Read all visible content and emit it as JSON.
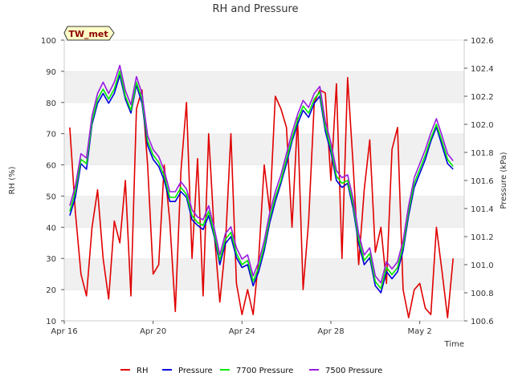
{
  "chart_data": {
    "type": "line",
    "title": "RH and Pressure",
    "tag": "TW_met",
    "xlabel": "Time",
    "ylabel_left": "RH (%)",
    "ylabel_right": "Pressure (kPa)",
    "ylim_left": [
      10,
      100
    ],
    "ylim_right": [
      100.6,
      102.6
    ],
    "xlim_days": [
      "Apr 16",
      "May 4"
    ],
    "x_ticks": [
      "Apr 16",
      "Apr 20",
      "Apr 24",
      "Apr 28",
      "May 2"
    ],
    "y_ticks_left": [
      10,
      20,
      30,
      40,
      50,
      60,
      70,
      80,
      90,
      100
    ],
    "y_ticks_right": [
      100.6,
      100.8,
      101.0,
      101.2,
      101.4,
      101.6,
      101.8,
      102.0,
      102.2,
      102.4,
      102.6
    ],
    "grid": "horizontal bands",
    "legend": "bottom",
    "colors": {
      "RH": "#e00000",
      "Pressure": "#0000dd",
      "7700 Pressure": "#00ee00",
      "7500 Pressure": "#9a1be0"
    },
    "series": [
      {
        "name": "RH",
        "axis": "left",
        "x": [
          "Apr 16 06:00",
          "Apr 16 12:00",
          "Apr 16 18:00",
          "Apr 17 00:00",
          "Apr 17 06:00",
          "Apr 17 12:00",
          "Apr 17 18:00",
          "Apr 18 00:00",
          "Apr 18 06:00",
          "Apr 18 12:00",
          "Apr 18 18:00",
          "Apr 19 00:00",
          "Apr 19 06:00",
          "Apr 19 12:00",
          "Apr 19 18:00",
          "Apr 20 00:00",
          "Apr 20 06:00",
          "Apr 20 12:00",
          "Apr 20 18:00",
          "Apr 21 00:00",
          "Apr 21 06:00",
          "Apr 21 12:00",
          "Apr 21 18:00",
          "Apr 22 00:00",
          "Apr 22 06:00",
          "Apr 22 12:00",
          "Apr 22 18:00",
          "Apr 23 00:00",
          "Apr 23 06:00",
          "Apr 23 12:00",
          "Apr 23 18:00",
          "Apr 24 00:00",
          "Apr 24 06:00",
          "Apr 24 12:00",
          "Apr 24 18:00",
          "Apr 25 00:00",
          "Apr 25 06:00",
          "Apr 25 12:00",
          "Apr 25 18:00",
          "Apr 26 00:00",
          "Apr 26 06:00",
          "Apr 26 12:00",
          "Apr 26 18:00",
          "Apr 27 00:00",
          "Apr 27 06:00",
          "Apr 27 12:00",
          "Apr 27 18:00",
          "Apr 28 00:00",
          "Apr 28 06:00",
          "Apr 28 12:00",
          "Apr 28 18:00",
          "Apr 29 00:00",
          "Apr 29 06:00",
          "Apr 29 12:00",
          "Apr 29 18:00",
          "Apr 30 00:00",
          "Apr 30 06:00",
          "Apr 30 12:00",
          "Apr 30 18:00",
          "May 1 00:00",
          "May 1 06:00",
          "May 1 12:00",
          "May 1 18:00",
          "May 2 00:00",
          "May 2 06:00",
          "May 2 12:00",
          "May 2 18:00",
          "May 3 00:00",
          "May 3 06:00",
          "May 3 12:00"
        ],
        "values": [
          72,
          45,
          25,
          18,
          40,
          52,
          30,
          17,
          42,
          35,
          55,
          18,
          78,
          84,
          60,
          25,
          28,
          60,
          42,
          13,
          58,
          80,
          30,
          62,
          18,
          70,
          38,
          16,
          34,
          70,
          22,
          12,
          20,
          12,
          30,
          60,
          45,
          82,
          78,
          72,
          40,
          75,
          20,
          42,
          80,
          84,
          83,
          55,
          86,
          30,
          88,
          60,
          28,
          52,
          68,
          32,
          40,
          22,
          65,
          72,
          20,
          11,
          20,
          22,
          14,
          12,
          40,
          26,
          11,
          30
        ]
      },
      {
        "name": "Pressure",
        "axis": "right",
        "x": [
          "Apr 16 06:00",
          "Apr 16 12:00",
          "Apr 16 18:00",
          "Apr 17 00:00",
          "Apr 17 06:00",
          "Apr 17 12:00",
          "Apr 17 18:00",
          "Apr 18 00:00",
          "Apr 18 06:00",
          "Apr 18 12:00",
          "Apr 18 18:00",
          "Apr 19 00:00",
          "Apr 19 06:00",
          "Apr 19 12:00",
          "Apr 19 18:00",
          "Apr 20 00:00",
          "Apr 20 06:00",
          "Apr 20 12:00",
          "Apr 20 18:00",
          "Apr 21 00:00",
          "Apr 21 06:00",
          "Apr 21 12:00",
          "Apr 21 18:00",
          "Apr 22 00:00",
          "Apr 22 06:00",
          "Apr 22 12:00",
          "Apr 22 18:00",
          "Apr 23 00:00",
          "Apr 23 06:00",
          "Apr 23 12:00",
          "Apr 23 18:00",
          "Apr 24 00:00",
          "Apr 24 06:00",
          "Apr 24 12:00",
          "Apr 24 18:00",
          "Apr 25 00:00",
          "Apr 25 06:00",
          "Apr 25 12:00",
          "Apr 25 18:00",
          "Apr 26 00:00",
          "Apr 26 06:00",
          "Apr 26 12:00",
          "Apr 26 18:00",
          "Apr 27 00:00",
          "Apr 27 06:00",
          "Apr 27 12:00",
          "Apr 27 18:00",
          "Apr 28 00:00",
          "Apr 28 06:00",
          "Apr 28 12:00",
          "Apr 28 18:00",
          "Apr 29 00:00",
          "Apr 29 06:00",
          "Apr 29 12:00",
          "Apr 29 18:00",
          "Apr 30 00:00",
          "Apr 30 06:00",
          "Apr 30 12:00",
          "Apr 30 18:00",
          "May 1 00:00",
          "May 1 06:00",
          "May 1 12:00",
          "May 1 18:00",
          "May 2 00:00",
          "May 2 06:00",
          "May 2 12:00",
          "May 2 18:00",
          "May 3 00:00",
          "May 3 06:00",
          "May 3 12:00"
        ],
        "values": [
          101.35,
          101.48,
          101.72,
          101.68,
          102.0,
          102.15,
          102.22,
          102.15,
          102.22,
          102.35,
          102.18,
          102.08,
          102.28,
          102.15,
          101.85,
          101.75,
          101.7,
          101.6,
          101.45,
          101.45,
          101.52,
          101.48,
          101.32,
          101.28,
          101.25,
          101.35,
          101.2,
          101.0,
          101.15,
          101.2,
          101.05,
          100.98,
          101.0,
          100.85,
          100.95,
          101.1,
          101.3,
          101.45,
          101.58,
          101.72,
          101.88,
          102.0,
          102.1,
          102.05,
          102.15,
          102.2,
          101.95,
          101.8,
          101.6,
          101.55,
          101.58,
          101.4,
          101.15,
          101.0,
          101.05,
          100.85,
          100.8,
          100.95,
          100.9,
          100.95,
          101.1,
          101.35,
          101.55,
          101.65,
          101.75,
          101.88,
          101.98,
          101.85,
          101.72,
          101.68
        ]
      },
      {
        "name": "7700 Pressure",
        "axis": "right",
        "x": [
          "Apr 16 06:00",
          "Apr 16 12:00",
          "Apr 16 18:00",
          "Apr 17 00:00",
          "Apr 17 06:00",
          "Apr 17 12:00",
          "Apr 17 18:00",
          "Apr 18 00:00",
          "Apr 18 06:00",
          "Apr 18 12:00",
          "Apr 18 18:00",
          "Apr 19 00:00",
          "Apr 19 06:00",
          "Apr 19 12:00",
          "Apr 19 18:00",
          "Apr 20 00:00",
          "Apr 20 06:00",
          "Apr 20 12:00",
          "Apr 20 18:00",
          "Apr 21 00:00",
          "Apr 21 06:00",
          "Apr 21 12:00",
          "Apr 21 18:00",
          "Apr 22 00:00",
          "Apr 22 06:00",
          "Apr 22 12:00",
          "Apr 22 18:00",
          "Apr 23 00:00",
          "Apr 23 06:00",
          "Apr 23 12:00",
          "Apr 23 18:00",
          "Apr 24 00:00",
          "Apr 24 06:00",
          "Apr 24 12:00",
          "Apr 24 18:00",
          "Apr 25 00:00",
          "Apr 25 06:00",
          "Apr 25 12:00",
          "Apr 25 18:00",
          "Apr 26 00:00",
          "Apr 26 06:00",
          "Apr 26 12:00",
          "Apr 26 18:00",
          "Apr 27 00:00",
          "Apr 27 06:00",
          "Apr 27 12:00",
          "Apr 27 18:00",
          "Apr 28 00:00",
          "Apr 28 06:00",
          "Apr 28 12:00",
          "Apr 28 18:00",
          "Apr 29 00:00",
          "Apr 29 06:00",
          "Apr 29 12:00",
          "Apr 29 18:00",
          "Apr 30 00:00",
          "Apr 30 06:00",
          "Apr 30 12:00",
          "Apr 30 18:00",
          "May 1 00:00",
          "May 1 06:00",
          "May 1 12:00",
          "May 1 18:00",
          "May 2 00:00",
          "May 2 06:00",
          "May 2 12:00",
          "May 2 18:00",
          "May 3 00:00",
          "May 3 06:00",
          "May 3 12:00"
        ],
        "values": [
          101.38,
          101.52,
          101.75,
          101.72,
          102.02,
          102.18,
          102.25,
          102.18,
          102.25,
          102.38,
          102.2,
          102.1,
          102.3,
          102.18,
          101.88,
          101.78,
          101.73,
          101.63,
          101.48,
          101.48,
          101.55,
          101.5,
          101.35,
          101.3,
          101.28,
          101.38,
          101.22,
          101.03,
          101.18,
          101.23,
          101.08,
          101.0,
          101.03,
          100.88,
          100.98,
          101.13,
          101.33,
          101.48,
          101.6,
          101.75,
          101.9,
          102.03,
          102.13,
          102.08,
          102.18,
          102.23,
          101.98,
          101.83,
          101.63,
          101.58,
          101.6,
          101.43,
          101.18,
          101.03,
          101.08,
          100.88,
          100.83,
          100.98,
          100.93,
          100.98,
          101.13,
          101.38,
          101.58,
          101.68,
          101.78,
          101.9,
          102.0,
          101.88,
          101.75,
          101.7
        ]
      },
      {
        "name": "7500 Pressure",
        "axis": "right",
        "x": [
          "Apr 16 06:00",
          "Apr 16 12:00",
          "Apr 16 18:00",
          "Apr 17 00:00",
          "Apr 17 06:00",
          "Apr 17 12:00",
          "Apr 17 18:00",
          "Apr 18 00:00",
          "Apr 18 06:00",
          "Apr 18 12:00",
          "Apr 18 18:00",
          "Apr 19 00:00",
          "Apr 19 06:00",
          "Apr 19 12:00",
          "Apr 19 18:00",
          "Apr 20 00:00",
          "Apr 20 06:00",
          "Apr 20 12:00",
          "Apr 20 18:00",
          "Apr 21 00:00",
          "Apr 21 06:00",
          "Apr 21 12:00",
          "Apr 21 18:00",
          "Apr 22 00:00",
          "Apr 22 06:00",
          "Apr 22 12:00",
          "Apr 22 18:00",
          "Apr 23 00:00",
          "Apr 23 06:00",
          "Apr 23 12:00",
          "Apr 23 18:00",
          "Apr 24 00:00",
          "Apr 24 06:00",
          "Apr 24 12:00",
          "Apr 24 18:00",
          "Apr 25 00:00",
          "Apr 25 06:00",
          "Apr 25 12:00",
          "Apr 25 18:00",
          "Apr 26 00:00",
          "Apr 26 06:00",
          "Apr 26 12:00",
          "Apr 26 18:00",
          "Apr 27 00:00",
          "Apr 27 06:00",
          "Apr 27 12:00",
          "Apr 27 18:00",
          "Apr 28 00:00",
          "Apr 28 06:00",
          "Apr 28 12:00",
          "Apr 28 18:00",
          "Apr 29 00:00",
          "Apr 29 06:00",
          "Apr 29 12:00",
          "Apr 29 18:00",
          "Apr 30 00:00",
          "Apr 30 06:00",
          "Apr 30 12:00",
          "Apr 30 18:00",
          "May 1 00:00",
          "May 1 06:00",
          "May 1 12:00",
          "May 1 18:00",
          "May 2 00:00",
          "May 2 06:00",
          "May 2 12:00",
          "May 2 18:00",
          "May 3 00:00",
          "May 3 06:00",
          "May 3 12:00"
        ],
        "values": [
          101.42,
          101.56,
          101.79,
          101.76,
          102.06,
          102.22,
          102.3,
          102.22,
          102.3,
          102.42,
          102.24,
          102.14,
          102.34,
          102.22,
          101.92,
          101.82,
          101.77,
          101.67,
          101.52,
          101.52,
          101.59,
          101.54,
          101.39,
          101.34,
          101.32,
          101.42,
          101.26,
          101.07,
          101.22,
          101.27,
          101.12,
          101.04,
          101.07,
          100.92,
          101.02,
          101.17,
          101.37,
          101.52,
          101.64,
          101.79,
          101.94,
          102.07,
          102.17,
          102.12,
          102.22,
          102.27,
          102.02,
          101.87,
          101.67,
          101.62,
          101.64,
          101.47,
          101.22,
          101.07,
          101.12,
          100.92,
          100.87,
          101.02,
          100.97,
          101.02,
          101.17,
          101.42,
          101.62,
          101.72,
          101.82,
          101.94,
          102.04,
          101.92,
          101.79,
          101.74
        ]
      }
    ]
  }
}
